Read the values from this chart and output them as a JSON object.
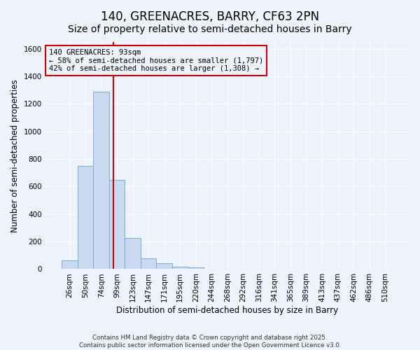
{
  "title": "140, GREENACRES, BARRY, CF63 2PN",
  "subtitle": "Size of property relative to semi-detached houses in Barry",
  "xlabel": "Distribution of semi-detached houses by size in Barry",
  "ylabel": "Number of semi-detached properties",
  "categories": [
    "26sqm",
    "50sqm",
    "74sqm",
    "99sqm",
    "123sqm",
    "147sqm",
    "171sqm",
    "195sqm",
    "220sqm",
    "244sqm",
    "268sqm",
    "292sqm",
    "316sqm",
    "341sqm",
    "365sqm",
    "389sqm",
    "413sqm",
    "437sqm",
    "462sqm",
    "486sqm",
    "510sqm"
  ],
  "values": [
    65,
    750,
    1290,
    650,
    225,
    80,
    42,
    20,
    10,
    0,
    0,
    0,
    0,
    0,
    0,
    0,
    0,
    0,
    0,
    0,
    0
  ],
  "bar_color": "#c9d9f0",
  "bar_edge_color": "#7aadd4",
  "red_line_color": "#cc0000",
  "annotation_line1": "140 GREENACRES: 93sqm",
  "annotation_line2": "← 58% of semi-detached houses are smaller (1,797)",
  "annotation_line3": "42% of semi-detached houses are larger (1,308) →",
  "ylim": [
    0,
    1650
  ],
  "yticks": [
    0,
    200,
    400,
    600,
    800,
    1000,
    1200,
    1400,
    1600
  ],
  "footer_line1": "Contains HM Land Registry data © Crown copyright and database right 2025.",
  "footer_line2": "Contains public sector information licensed under the Open Government Licence v3.0.",
  "background_color": "#eef2fb",
  "grid_color": "#ffffff",
  "title_fontsize": 12,
  "subtitle_fontsize": 10,
  "axis_label_fontsize": 8.5,
  "tick_fontsize": 7.5,
  "annotation_fontsize": 7.5
}
